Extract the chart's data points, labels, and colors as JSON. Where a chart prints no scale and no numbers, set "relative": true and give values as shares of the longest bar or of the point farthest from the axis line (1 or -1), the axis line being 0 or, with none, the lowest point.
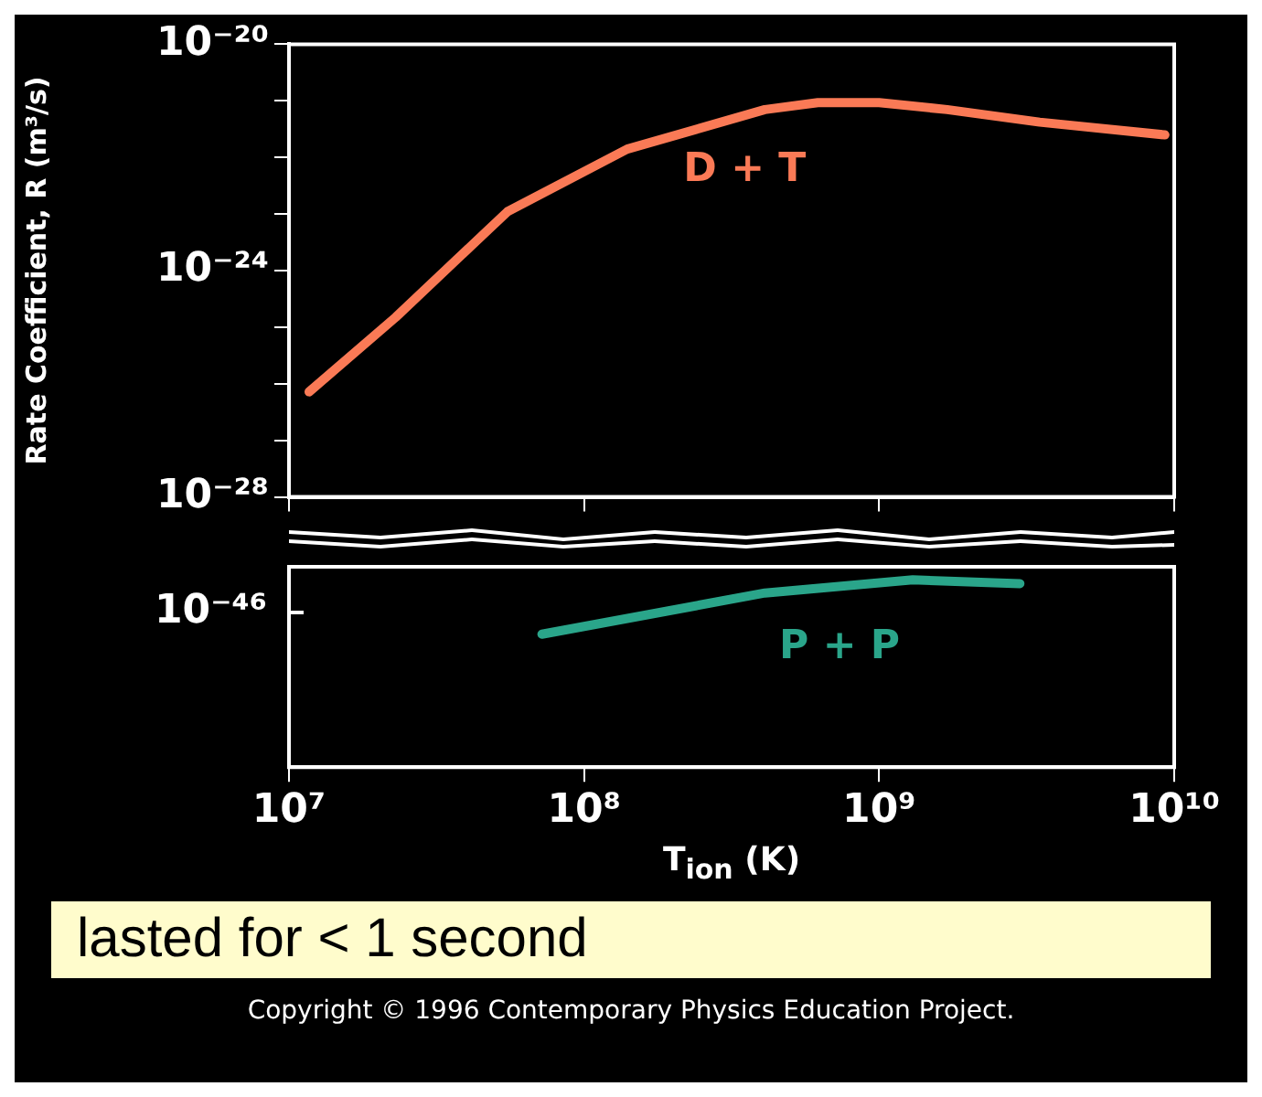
{
  "chart_data": [
    {
      "type": "line",
      "ylabel": "Rate Coefficient, R (m³/s)",
      "log": "xy",
      "grid": false,
      "legend": false,
      "tick_labels": "y",
      "marker": "none",
      "line_style": "solid",
      "xlim": [
        10000000,
        10000000000
      ],
      "xticks": [
        {
          "value": 10000000,
          "label": null
        },
        {
          "value": 100000000,
          "label": null
        },
        {
          "value": 1000000000,
          "label": null
        },
        {
          "value": 10000000000,
          "label": null
        }
      ],
      "ylim": [
        1e-28,
        1e-20
      ],
      "yticks": [
        {
          "value": 1e-20,
          "label": "10⁻²⁰"
        },
        {
          "value": 1e-21,
          "label": null
        },
        {
          "value": 1e-22,
          "label": null
        },
        {
          "value": 1e-23,
          "label": null
        },
        {
          "value": 1e-24,
          "label": "10⁻²⁴"
        },
        {
          "value": 1e-25,
          "label": null
        },
        {
          "value": 1e-26,
          "label": null
        },
        {
          "value": 1e-27,
          "label": null
        },
        {
          "value": 1e-28,
          "label": "10⁻²⁸"
        }
      ],
      "series": [
        {
          "name": "D + T",
          "color": "#fa7a56",
          "x": [
            11700000,
            23000000,
            55000000,
            140000000,
            410000000,
            620000000,
            1000000000,
            1700000000,
            3500000000,
            9300000000
          ],
          "values": [
            7.2e-27,
            1.5e-25,
            1.1e-23,
            1.4e-22,
            7e-22,
            9.3e-22,
            9.3e-22,
            7e-22,
            4.2e-22,
            2.5e-22
          ]
        }
      ]
    },
    {
      "type": "line",
      "xlabel": "T$_{ion}$ (K)",
      "log": "x",
      "relative": true,
      "grid": false,
      "legend": false,
      "marker": "none",
      "line_style": "solid",
      "xlim": [
        10000000,
        10000000000
      ],
      "xticks": [
        {
          "value": 10000000,
          "label": "10⁷"
        },
        {
          "value": 100000000,
          "label": "10⁸"
        },
        {
          "value": 1000000000,
          "label": "10⁹"
        },
        {
          "value": 10000000000,
          "label": "10¹⁰"
        }
      ],
      "series": [
        {
          "name": "P + P",
          "color": "#2aa58a",
          "x": [
            72000000,
            410000000,
            1300000000,
            3000000000
          ],
          "values": [
            0.71,
            0.93,
            1,
            0.98
          ]
        }
      ],
      "annotations": [
        "10⁻⁴⁶",
        "lasted for < 1 second",
        "Copyright © 1996 Contemporary Physics Education Project."
      ]
    }
  ]
}
